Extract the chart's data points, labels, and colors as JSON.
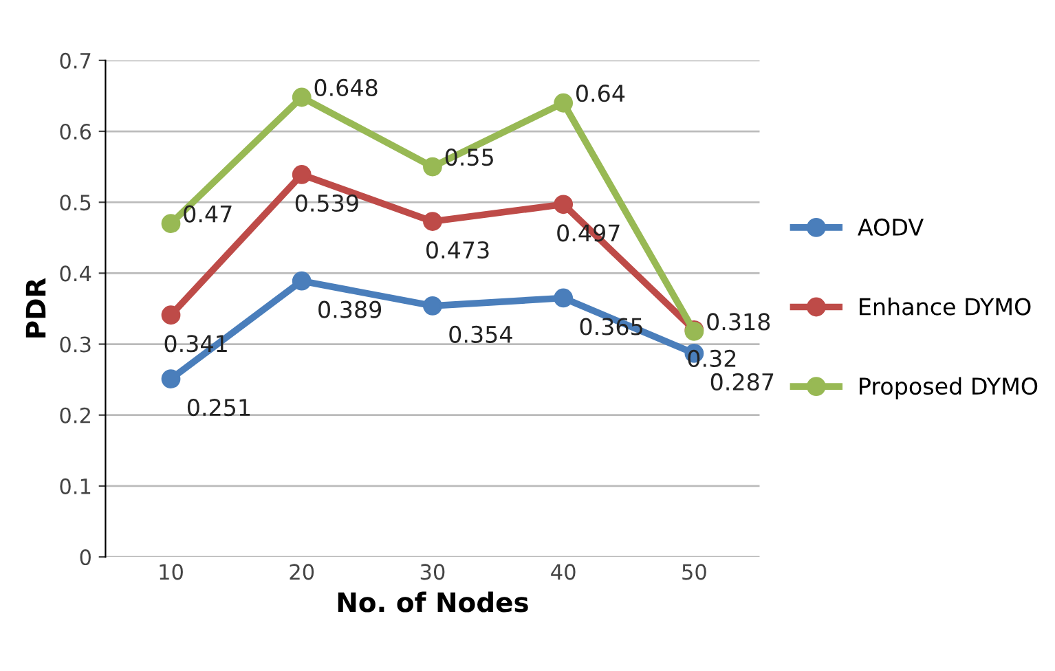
{
  "chart_data": {
    "type": "line",
    "xlabel": "No. of Nodes",
    "ylabel": "PDR",
    "categories": [
      "10",
      "20",
      "30",
      "40",
      "50"
    ],
    "series": [
      {
        "name": "AODV",
        "color": "#4a7ebb",
        "values": [
          0.251,
          0.389,
          0.354,
          0.365,
          0.287
        ]
      },
      {
        "name": "Enhance DYMO",
        "color": "#be4b48",
        "values": [
          0.341,
          0.539,
          0.473,
          0.497,
          0.32
        ]
      },
      {
        "name": "Proposed DYMO",
        "color": "#98b954",
        "values": [
          0.47,
          0.648,
          0.55,
          0.64,
          0.318
        ]
      }
    ],
    "ylim": [
      0,
      0.7
    ],
    "yticks": [
      0,
      0.1,
      0.2,
      0.3,
      0.4,
      0.5,
      0.6,
      0.7
    ],
    "grid": "y",
    "legend": "right",
    "marker": "circle",
    "line_style": "solid",
    "data_labels": true
  }
}
